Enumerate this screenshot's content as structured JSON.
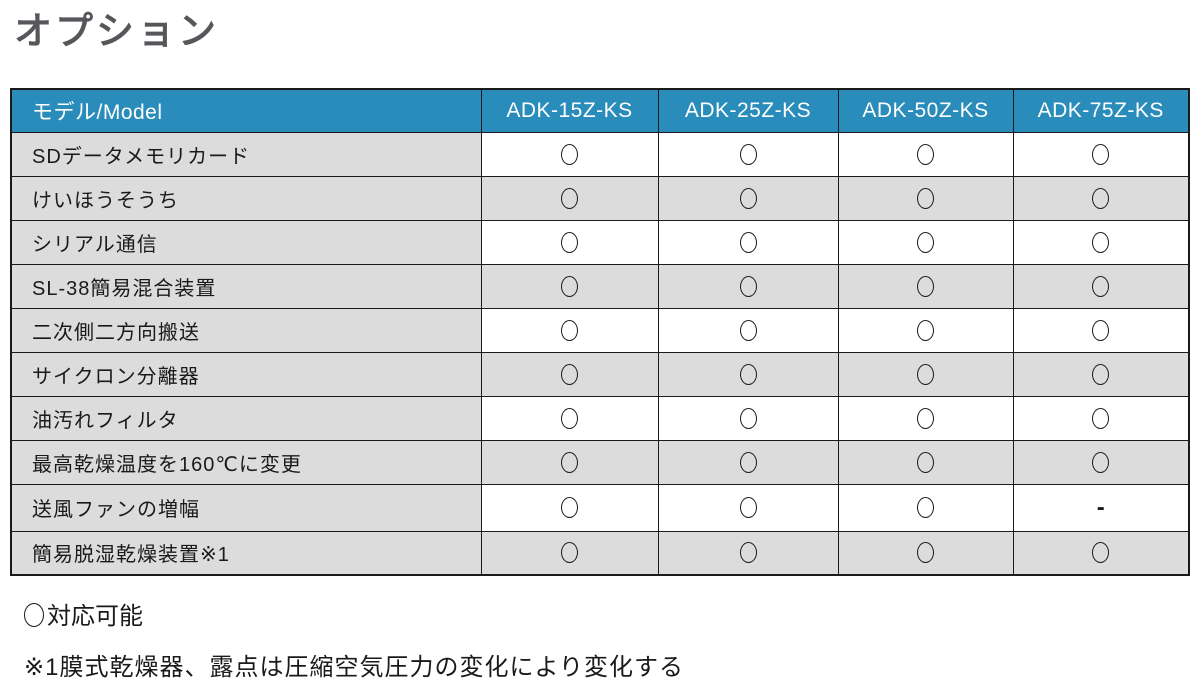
{
  "page_title": "オプション",
  "table": {
    "header": [
      "モデル/Model",
      "ADK-15Z-KS",
      "ADK-25Z-KS",
      "ADK-50Z-KS",
      "ADK-75Z-KS"
    ],
    "rows": [
      {
        "label": "SDデータメモリカード",
        "values": [
          "circle",
          "circle",
          "circle",
          "circle"
        ]
      },
      {
        "label": "けいほうそうち",
        "values": [
          "circle",
          "circle",
          "circle",
          "circle"
        ]
      },
      {
        "label": "シリアル通信",
        "values": [
          "circle",
          "circle",
          "circle",
          "circle"
        ]
      },
      {
        "label": "SL-38簡易混合装置",
        "values": [
          "circle",
          "circle",
          "circle",
          "circle"
        ]
      },
      {
        "label": "二次側二方向搬送",
        "values": [
          "circle",
          "circle",
          "circle",
          "circle"
        ]
      },
      {
        "label": "サイクロン分離器",
        "values": [
          "circle",
          "circle",
          "circle",
          "circle"
        ]
      },
      {
        "label": "油汚れフィルタ",
        "values": [
          "circle",
          "circle",
          "circle",
          "circle"
        ]
      },
      {
        "label": "最高乾燥温度を160℃に変更",
        "values": [
          "circle",
          "circle",
          "circle",
          "circle"
        ]
      },
      {
        "label": "送風ファンの増幅",
        "values": [
          "circle",
          "circle",
          "circle",
          "dash"
        ]
      },
      {
        "label": "簡易脱湿乾燥装置※1",
        "values": [
          "circle",
          "circle",
          "circle",
          "circle"
        ]
      }
    ],
    "symbols": {
      "circle": "○",
      "dash": "-"
    }
  },
  "footnotes": {
    "legend_symbol": "○",
    "legend_text": "対応可能",
    "note": "※1膜式乾燥器、露点は圧縮空気圧力の変化により変化する"
  },
  "colors": {
    "header_bg": "#298cba",
    "alt_row_bg": "#dcdcdc",
    "border": "#1a1a1a",
    "title": "#56575b"
  }
}
